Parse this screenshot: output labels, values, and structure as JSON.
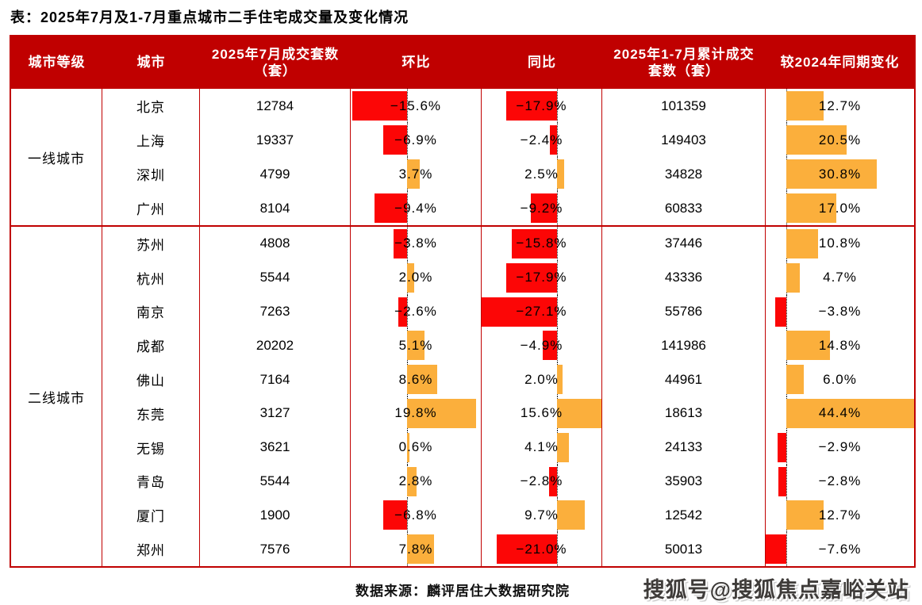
{
  "title": "表：2025年7月及1-7月重点城市二手住宅成交量及变化情况",
  "source_note": "数据来源：麟评居住大数据研究院",
  "watermark": "搜狐号@搜狐焦点嘉峪关站",
  "colors": {
    "header_bg": "#c00000",
    "table_border": "#c00000",
    "negative_bar": "#fc0606",
    "positive_bar": "#fbaf3c"
  },
  "chart_data": {
    "type": "table",
    "title": "2025年7月及1-7月重点城市二手住宅成交量及变化情况",
    "columns": [
      "城市等级",
      "城市",
      "2025年7月成交套数（套）",
      "环比",
      "同比",
      "2025年1-7月累计成交套数（套）",
      "较2024年同期变化"
    ],
    "bar_columns": [
      "环比",
      "同比",
      "较2024年同期变化"
    ],
    "bar_style": "negative bars red extend left of dotted zero baseline, positive bars orange extend right",
    "groups": [
      {
        "tier": "一线城市",
        "rows": [
          {
            "city": "北京",
            "jul_2025": 12784,
            "mom_pct": -15.6,
            "yoy_pct": -17.9,
            "cum_2025": 101359,
            "cum_vs_2024_pct": 12.7
          },
          {
            "city": "上海",
            "jul_2025": 19337,
            "mom_pct": -6.9,
            "yoy_pct": -2.4,
            "cum_2025": 149403,
            "cum_vs_2024_pct": 20.5
          },
          {
            "city": "深圳",
            "jul_2025": 4799,
            "mom_pct": 3.7,
            "yoy_pct": 2.5,
            "cum_2025": 34828,
            "cum_vs_2024_pct": 30.8
          },
          {
            "city": "广州",
            "jul_2025": 8104,
            "mom_pct": -9.4,
            "yoy_pct": -9.2,
            "cum_2025": 60833,
            "cum_vs_2024_pct": 17.0
          }
        ]
      },
      {
        "tier": "二线城市",
        "rows": [
          {
            "city": "苏州",
            "jul_2025": 4808,
            "mom_pct": -3.8,
            "yoy_pct": -15.8,
            "cum_2025": 37446,
            "cum_vs_2024_pct": 10.8
          },
          {
            "city": "杭州",
            "jul_2025": 5544,
            "mom_pct": 2.0,
            "yoy_pct": -17.9,
            "cum_2025": 43336,
            "cum_vs_2024_pct": 4.7
          },
          {
            "city": "南京",
            "jul_2025": 7263,
            "mom_pct": -2.6,
            "yoy_pct": -27.1,
            "cum_2025": 55786,
            "cum_vs_2024_pct": -3.8
          },
          {
            "city": "成都",
            "jul_2025": 20202,
            "mom_pct": 5.1,
            "yoy_pct": -4.9,
            "cum_2025": 141986,
            "cum_vs_2024_pct": 14.8
          },
          {
            "city": "佛山",
            "jul_2025": 7164,
            "mom_pct": 8.6,
            "yoy_pct": 2.0,
            "cum_2025": 44961,
            "cum_vs_2024_pct": 6.0
          },
          {
            "city": "东莞",
            "jul_2025": 3127,
            "mom_pct": 19.8,
            "yoy_pct": 15.6,
            "cum_2025": 18613,
            "cum_vs_2024_pct": 44.4
          },
          {
            "city": "无锡",
            "jul_2025": 3621,
            "mom_pct": 0.6,
            "yoy_pct": 4.1,
            "cum_2025": 24133,
            "cum_vs_2024_pct": -2.9
          },
          {
            "city": "青岛",
            "jul_2025": 5544,
            "mom_pct": 2.8,
            "yoy_pct": -2.8,
            "cum_2025": 35903,
            "cum_vs_2024_pct": -2.8
          },
          {
            "city": "厦门",
            "jul_2025": 1900,
            "mom_pct": -6.8,
            "yoy_pct": 9.7,
            "cum_2025": 12542,
            "cum_vs_2024_pct": 12.7
          },
          {
            "city": "郑州",
            "jul_2025": 7576,
            "mom_pct": 7.8,
            "yoy_pct": -21.0,
            "cum_2025": 50013,
            "cum_vs_2024_pct": -7.6
          }
        ]
      }
    ]
  }
}
